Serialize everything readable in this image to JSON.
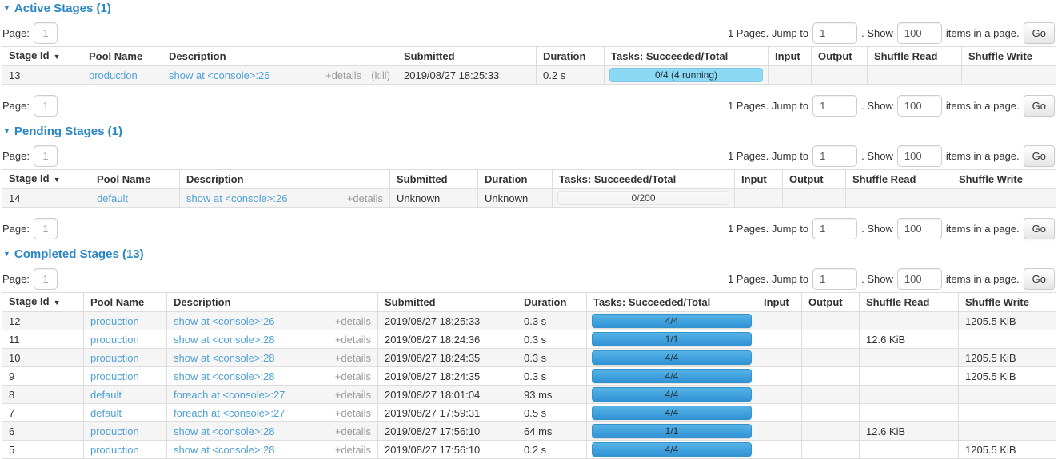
{
  "colors": {
    "title_blue": "#2b87c4",
    "link_blue": "#4fa1d6",
    "muted_gray": "#999999",
    "text": "#333333",
    "border_gray": "#dddddd",
    "stripe_bg": "#f5f5f5",
    "bar_running_bg": "#8bd9f5",
    "bar_running_border": "#7cc8e6",
    "bar_done_top": "#55b3e6",
    "bar_done_bottom": "#3093d5",
    "bar_done_border": "#3392cb",
    "bar_empty_top": "#fafafa",
    "bar_empty_bottom": "#f2f2f2",
    "bar_empty_border": "#e3e3e3",
    "bar_text": "#24303a"
  },
  "icons": {
    "collapse_arrow": "▼",
    "sort_desc": "▼"
  },
  "pagination": {
    "page_label": "Page:",
    "page_value": "1",
    "pages_text": "1 Pages. Jump to",
    "jump_value": "1",
    "dot_show_label": ". Show",
    "show_value": "100",
    "items_label": "items in a page.",
    "go_label": "Go"
  },
  "columns": [
    "Stage Id",
    "Pool Name",
    "Description",
    "Submitted",
    "Duration",
    "Tasks: Succeeded/Total",
    "Input",
    "Output",
    "Shuffle Read",
    "Shuffle Write"
  ],
  "sections": [
    {
      "id": "active",
      "title": "Active Stages (1)",
      "rows": [
        {
          "stage_id": "13",
          "pool": "production",
          "description": "show at <console>:26",
          "details_label": "+details",
          "kill_label": "(kill)",
          "submitted": "2019/08/27 18:25:33",
          "duration": "0.2 s",
          "tasks": {
            "label": "0/4 (4 running)",
            "style": "running"
          },
          "input": "",
          "output": "",
          "shuffle_read": "",
          "shuffle_write": ""
        }
      ]
    },
    {
      "id": "pending",
      "title": "Pending Stages (1)",
      "rows": [
        {
          "stage_id": "14",
          "pool": "default",
          "description": "show at <console>:26",
          "details_label": "+details",
          "kill_label": "",
          "submitted": "Unknown",
          "duration": "Unknown",
          "tasks": {
            "label": "0/200",
            "style": "empty"
          },
          "input": "",
          "output": "",
          "shuffle_read": "",
          "shuffle_write": ""
        }
      ]
    },
    {
      "id": "completed",
      "title": "Completed Stages (13)",
      "rows": [
        {
          "stage_id": "12",
          "pool": "production",
          "description": "show at <console>:26",
          "details_label": "+details",
          "kill_label": "",
          "submitted": "2019/08/27 18:25:33",
          "duration": "0.3 s",
          "tasks": {
            "label": "4/4",
            "style": "done"
          },
          "input": "",
          "output": "",
          "shuffle_read": "",
          "shuffle_write": "1205.5 KiB"
        },
        {
          "stage_id": "11",
          "pool": "production",
          "description": "show at <console>:28",
          "details_label": "+details",
          "kill_label": "",
          "submitted": "2019/08/27 18:24:36",
          "duration": "0.3 s",
          "tasks": {
            "label": "1/1",
            "style": "done"
          },
          "input": "",
          "output": "",
          "shuffle_read": "12.6 KiB",
          "shuffle_write": ""
        },
        {
          "stage_id": "10",
          "pool": "production",
          "description": "show at <console>:28",
          "details_label": "+details",
          "kill_label": "",
          "submitted": "2019/08/27 18:24:35",
          "duration": "0.3 s",
          "tasks": {
            "label": "4/4",
            "style": "done"
          },
          "input": "",
          "output": "",
          "shuffle_read": "",
          "shuffle_write": "1205.5 KiB"
        },
        {
          "stage_id": "9",
          "pool": "production",
          "description": "show at <console>:28",
          "details_label": "+details",
          "kill_label": "",
          "submitted": "2019/08/27 18:24:35",
          "duration": "0.3 s",
          "tasks": {
            "label": "4/4",
            "style": "done"
          },
          "input": "",
          "output": "",
          "shuffle_read": "",
          "shuffle_write": "1205.5 KiB"
        },
        {
          "stage_id": "8",
          "pool": "default",
          "description": "foreach at <console>:27",
          "details_label": "+details",
          "kill_label": "",
          "submitted": "2019/08/27 18:01:04",
          "duration": "93 ms",
          "tasks": {
            "label": "4/4",
            "style": "done"
          },
          "input": "",
          "output": "",
          "shuffle_read": "",
          "shuffle_write": ""
        },
        {
          "stage_id": "7",
          "pool": "default",
          "description": "foreach at <console>:27",
          "details_label": "+details",
          "kill_label": "",
          "submitted": "2019/08/27 17:59:31",
          "duration": "0.5 s",
          "tasks": {
            "label": "4/4",
            "style": "done"
          },
          "input": "",
          "output": "",
          "shuffle_read": "",
          "shuffle_write": ""
        },
        {
          "stage_id": "6",
          "pool": "production",
          "description": "show at <console>:28",
          "details_label": "+details",
          "kill_label": "",
          "submitted": "2019/08/27 17:56:10",
          "duration": "64 ms",
          "tasks": {
            "label": "1/1",
            "style": "done"
          },
          "input": "",
          "output": "",
          "shuffle_read": "12.6 KiB",
          "shuffle_write": ""
        },
        {
          "stage_id": "5",
          "pool": "production",
          "description": "show at <console>:28",
          "details_label": "+details",
          "kill_label": "",
          "submitted": "2019/08/27 17:56:10",
          "duration": "0.2 s",
          "tasks": {
            "label": "4/4",
            "style": "done"
          },
          "input": "",
          "output": "",
          "shuffle_read": "",
          "shuffle_write": "1205.5 KiB"
        }
      ]
    }
  ]
}
